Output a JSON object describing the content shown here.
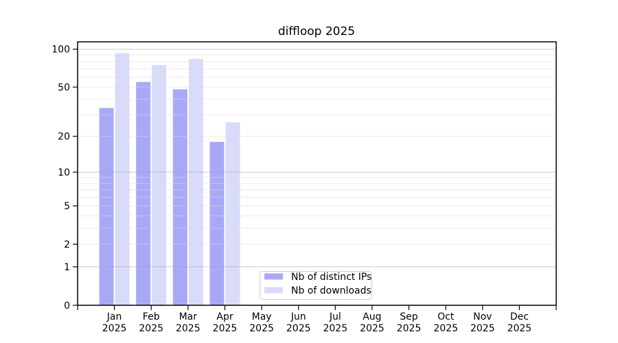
{
  "title": "diffloop 2025",
  "colors": {
    "bar_ips": "#a8a9f6",
    "bar_downloads": "#d9dbfa",
    "grid_major": "#9e9e9e",
    "grid_minor": "#dcdcdc",
    "axis": "#000000",
    "legend_border": "#cccccc",
    "background": "#ffffff"
  },
  "chart_data": {
    "type": "bar",
    "title": "diffloop 2025",
    "x_month_labels": [
      "Jan",
      "Feb",
      "Mar",
      "Apr",
      "May",
      "Jun",
      "Jul",
      "Aug",
      "Sep",
      "Oct",
      "Nov",
      "Dec"
    ],
    "x_year_label": "2025",
    "series": [
      {
        "name": "Nb of distinct IPs",
        "color": "#a8a9f6",
        "values": [
          34,
          55,
          48,
          18,
          null,
          null,
          null,
          null,
          null,
          null,
          null,
          null
        ]
      },
      {
        "name": "Nb of downloads",
        "color": "#d9dbfa",
        "values": [
          93,
          75,
          84,
          26,
          null,
          null,
          null,
          null,
          null,
          null,
          null,
          null
        ]
      }
    ],
    "y_ticks": [
      0,
      1,
      2,
      5,
      10,
      20,
      50,
      100
    ],
    "y_scale": "log1p",
    "ylim": [
      0,
      114
    ],
    "grid": "horizontal; major gridlines at 1, 10, 100; minor gridlines at 2-9 and 20-90",
    "legend": {
      "position": "inside-bottom-center",
      "items": [
        "Nb of distinct IPs",
        "Nb of downloads"
      ]
    }
  }
}
